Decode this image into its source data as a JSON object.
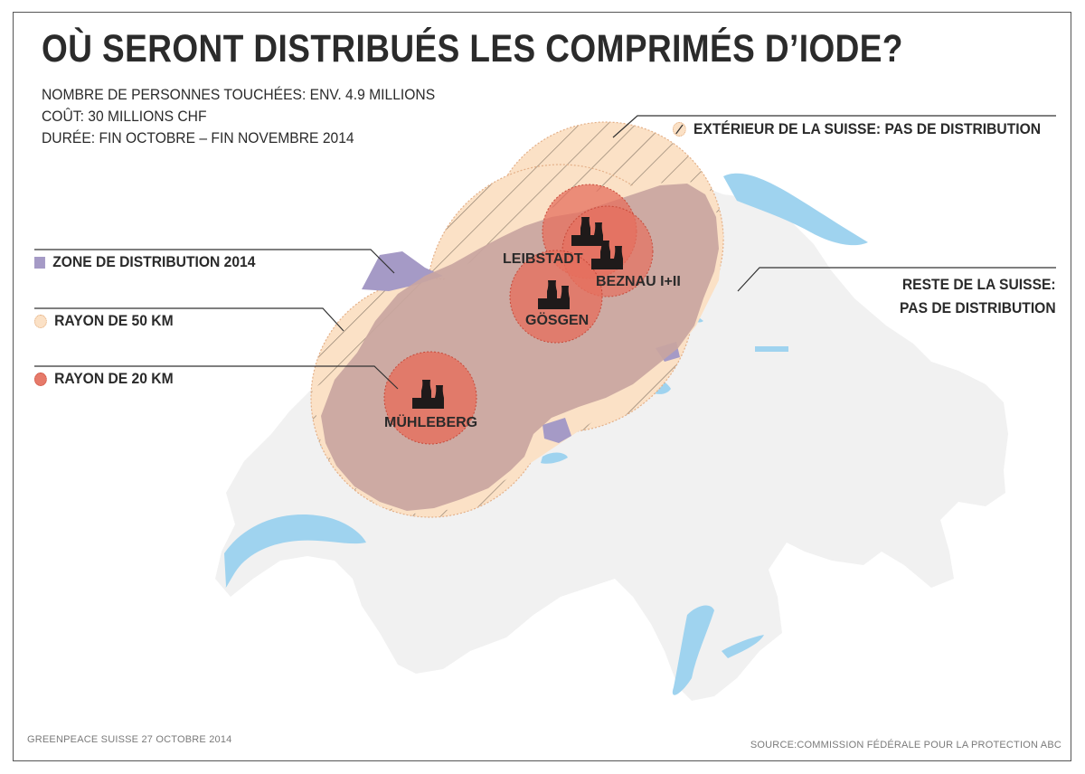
{
  "title": "OÙ SERONT DISTRIBUÉS LES COMPRIMÉS D’IODE?",
  "stats": {
    "people": "NOMBRE DE PERSONNES TOUCHÉES: ENV. 4.9 MILLIONS",
    "cost": "COÛT: 30 MILLIONS CHF",
    "duration": "DURÉE: FIN OCTOBRE – FIN NOVEMBRE 2014"
  },
  "legend": {
    "outside": "EXTÉRIEUR DE LA SUISSE: PAS DE DISTRIBUTION",
    "zone": "ZONE DE DISTRIBUTION 2014",
    "radius50": "RAYON DE 50 KM",
    "radius20": "RAYON DE 20 KM",
    "rest_line1": "RESTE DE LA SUISSE:",
    "rest_line2": "PAS DE DISTRIBUTION"
  },
  "plants": {
    "leibstadt": "LEIBSTADT",
    "beznau": "BEZNAU I+II",
    "gosgen": "GÖSGEN",
    "muhleberg": "MÜHLEBERG"
  },
  "footer": {
    "credit": "GREENPEACE SUISSE 27 OCTOBRE 2014",
    "source": "SOURCE:COMMISSION FÉDÉRALE POUR LA PROTECTION ABC"
  },
  "colors": {
    "switzerland": "#f1f1f1",
    "lakes": "#9fd3ef",
    "zone_50km": "#fbe1c6",
    "distribution_zone": "#c9a5a0",
    "zone_20km": "#e56f5e",
    "outside_zone": "#a59ac6"
  },
  "icons": {
    "plant": "nuclear-plant-icon"
  }
}
